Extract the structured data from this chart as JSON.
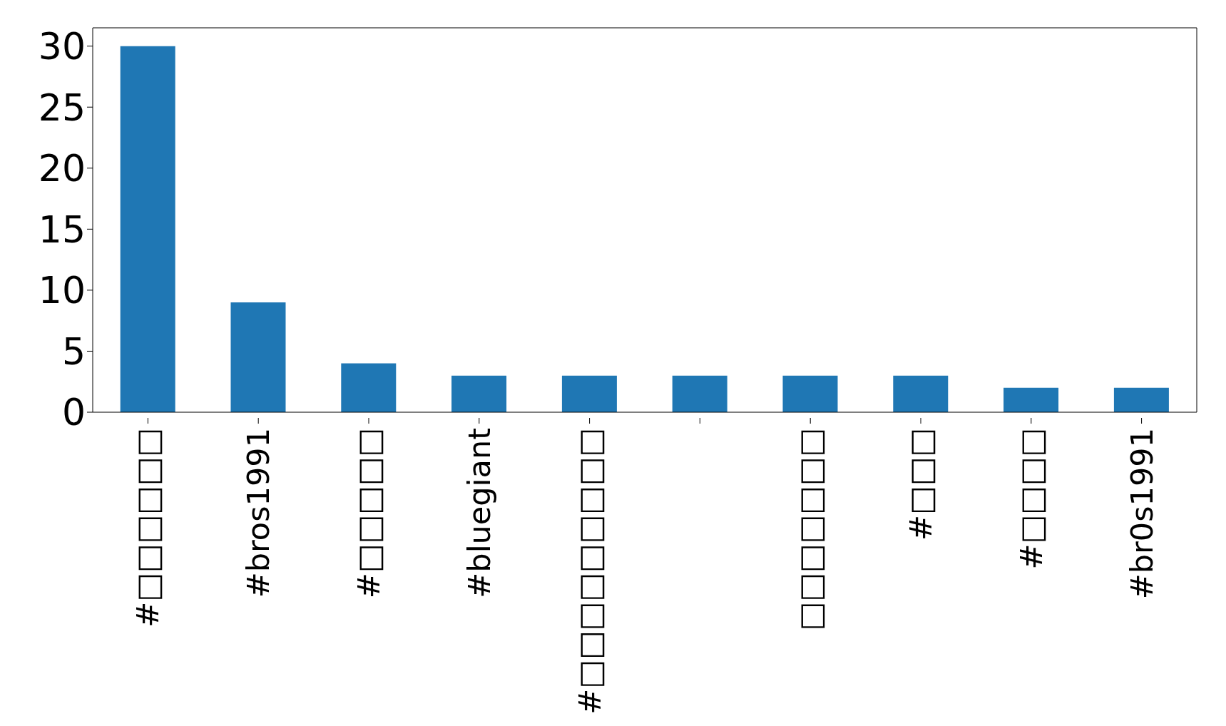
{
  "chart_data": {
    "type": "bar",
    "categories": [
      "#□□□□□□",
      "#bros1991",
      "#□□□□□",
      "#bluegiant",
      "#□□□□□□□□□",
      null,
      "□□□□□□□",
      "#□□□",
      "#□□□□",
      "#br0s1991"
    ],
    "values": [
      30,
      9,
      4,
      3,
      3,
      3,
      3,
      3,
      2,
      2
    ],
    "color": "#1f77b4",
    "ylim": [
      0,
      31.5
    ],
    "yticks": [
      0,
      5,
      10,
      15,
      20,
      25,
      30
    ],
    "grid": false,
    "legend": false
  }
}
